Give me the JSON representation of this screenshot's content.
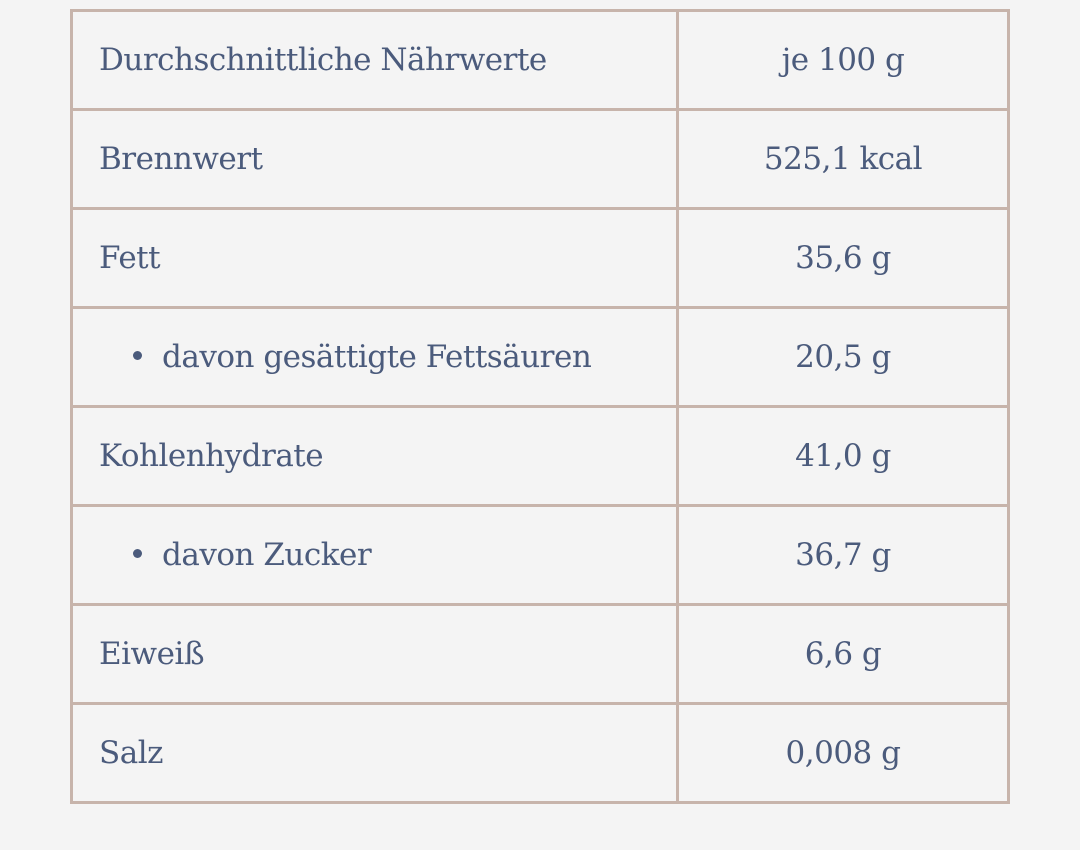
{
  "table": {
    "header": {
      "label": "Durchschnittliche Nährwerte",
      "value": "je 100 g"
    },
    "rows": [
      {
        "label": "Brennwert",
        "value": "525,1 kcal",
        "sub": false
      },
      {
        "label": "Fett",
        "value": "35,6 g",
        "sub": false
      },
      {
        "label": "davon gesättigte Fettsäuren",
        "value": "20,5 g",
        "sub": true
      },
      {
        "label": "Kohlenhydrate",
        "value": "41,0 g",
        "sub": false
      },
      {
        "label": "davon Zucker",
        "value": "36,7 g",
        "sub": true
      },
      {
        "label": "Eiweiß",
        "value": "6,6 g",
        "sub": false
      },
      {
        "label": "Salz",
        "value": "0,008 g",
        "sub": false
      }
    ]
  }
}
